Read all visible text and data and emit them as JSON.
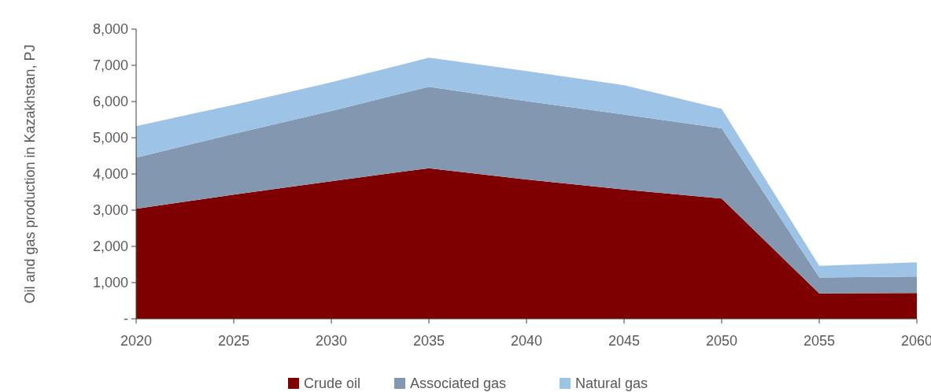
{
  "chart_data": {
    "type": "area",
    "stacked": true,
    "ylabel": "Oil and gas production in Kazakhstan, PJ",
    "x": [
      2020,
      2025,
      2030,
      2035,
      2040,
      2045,
      2050,
      2055,
      2060
    ],
    "xlim": [
      2020,
      2060
    ],
    "xticks": [
      2020,
      2025,
      2030,
      2035,
      2040,
      2045,
      2050,
      2055,
      2060
    ],
    "ylim": [
      0,
      8000
    ],
    "yticks": [
      {
        "value": 0,
        "label": "-"
      },
      {
        "value": 1000,
        "label": "1,000"
      },
      {
        "value": 2000,
        "label": "2,000"
      },
      {
        "value": 3000,
        "label": "3,000"
      },
      {
        "value": 4000,
        "label": "4,000"
      },
      {
        "value": 5000,
        "label": "5,000"
      },
      {
        "value": 6000,
        "label": "6,000"
      },
      {
        "value": 7000,
        "label": "7,000"
      },
      {
        "value": 8000,
        "label": "8,000"
      }
    ],
    "legend": "bottom",
    "series": [
      {
        "name": "Crude oil",
        "color": "#7f0000",
        "values": [
          3040,
          3430,
          3800,
          4160,
          3850,
          3570,
          3320,
          700,
          710
        ]
      },
      {
        "name": "Associated gas",
        "color": "#8497b0",
        "values": [
          1410,
          1680,
          1940,
          2250,
          2160,
          2070,
          1940,
          440,
          460
        ]
      },
      {
        "name": "Natural gas",
        "color": "#9dc3e6",
        "values": [
          870,
          800,
          790,
          800,
          830,
          810,
          540,
          320,
          390
        ]
      }
    ]
  }
}
